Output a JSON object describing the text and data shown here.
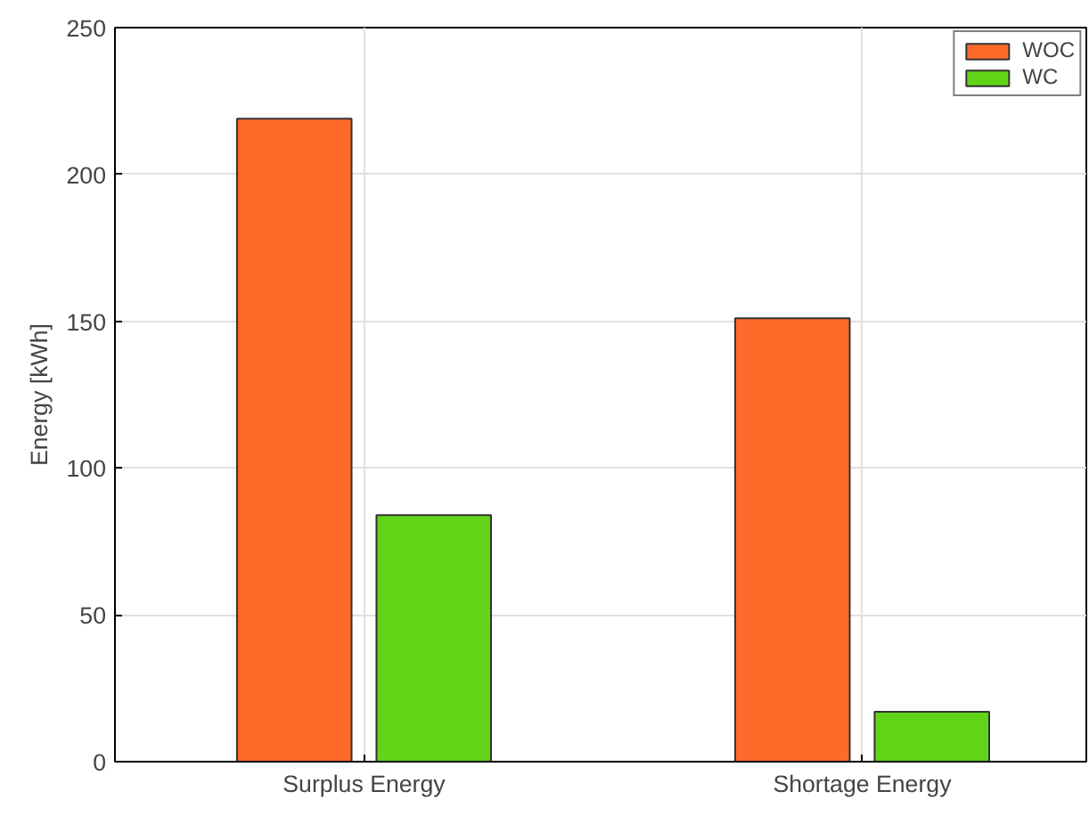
{
  "chart_data": {
    "type": "bar",
    "ylabel": "Energy [kWh]",
    "categories": [
      "Surplus Energy",
      "Shortage Energy"
    ],
    "series": [
      {
        "name": "WOC",
        "color": "#ff6a2b",
        "values": [
          219,
          151
        ]
      },
      {
        "name": "WC",
        "color": "#62d417",
        "values": [
          84,
          17
        ]
      }
    ],
    "ylim": [
      0,
      250
    ],
    "yticks": [
      0,
      50,
      100,
      150,
      200,
      250
    ],
    "grid": true,
    "legend": "top right"
  }
}
